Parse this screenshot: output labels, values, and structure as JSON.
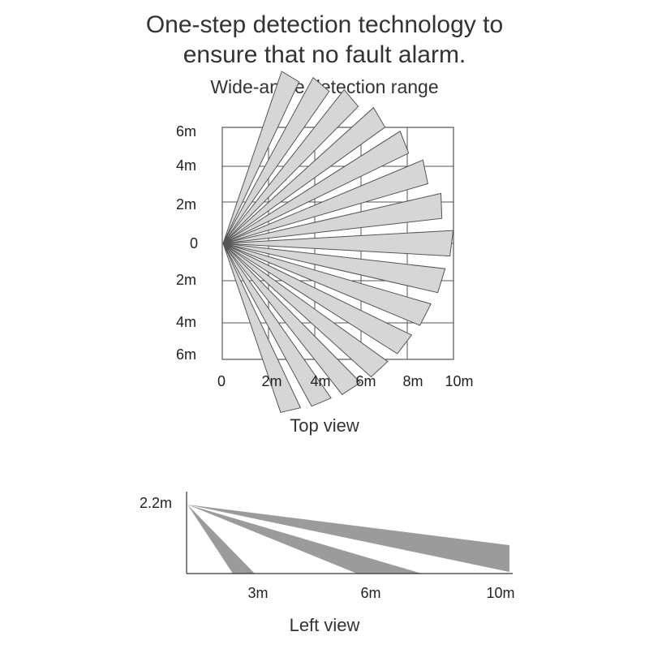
{
  "headline": {
    "line1": "One-step detection technology to",
    "line2": "ensure that no fault alarm."
  },
  "subtitle": "Wide-angle detection range",
  "top_view": {
    "caption": "Top view",
    "y_labels": [
      "6m",
      "4m",
      "2m",
      "0",
      "2m",
      "4m",
      "6m"
    ],
    "x_labels": [
      "0",
      "2m",
      "4m",
      "6m",
      "8m",
      "10m"
    ]
  },
  "left_view": {
    "caption": "Left view",
    "height_label": "2.2m",
    "x_labels": [
      "3m",
      "6m",
      "10m"
    ]
  },
  "colors": {
    "beam_fill": "#d6d6d6",
    "beam_stroke": "#555555",
    "side_beam_fill": "#9b9b9b",
    "grid": "#555555"
  }
}
